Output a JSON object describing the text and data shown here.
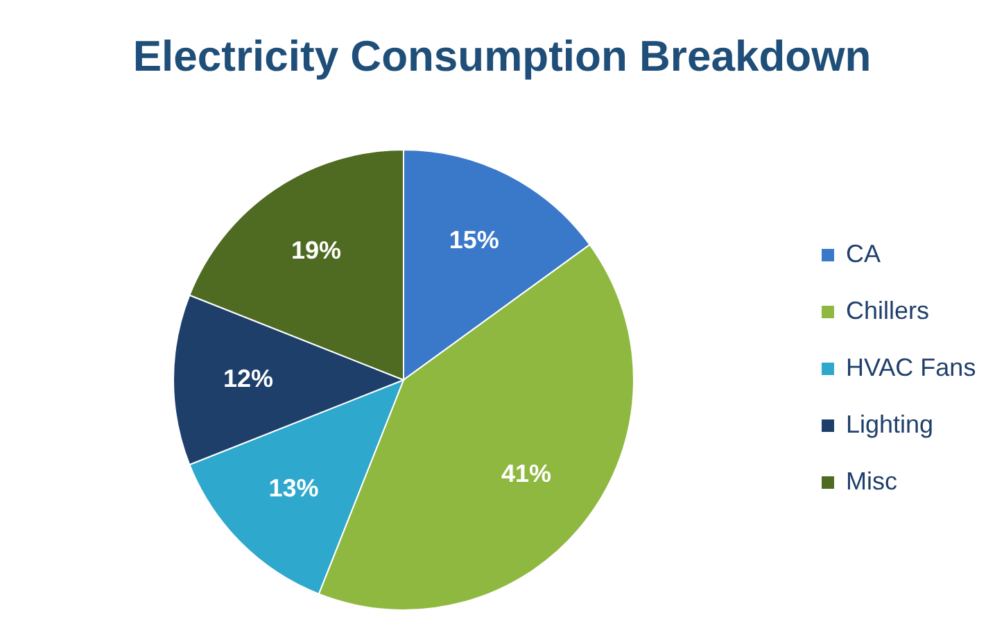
{
  "chart_data": {
    "type": "pie",
    "title": "Electricity Consumption Breakdown",
    "categories": [
      "CA",
      "Chillers",
      "HVAC Fans",
      "Lighting",
      "Misc"
    ],
    "values": [
      15,
      41,
      13,
      12,
      19
    ],
    "colors": [
      "#3a78c9",
      "#8fb840",
      "#2ea8cc",
      "#1f3f6b",
      "#4f6b22"
    ],
    "value_labels": [
      "15%",
      "41%",
      "13%",
      "12%",
      "19%"
    ],
    "legend": "right"
  }
}
